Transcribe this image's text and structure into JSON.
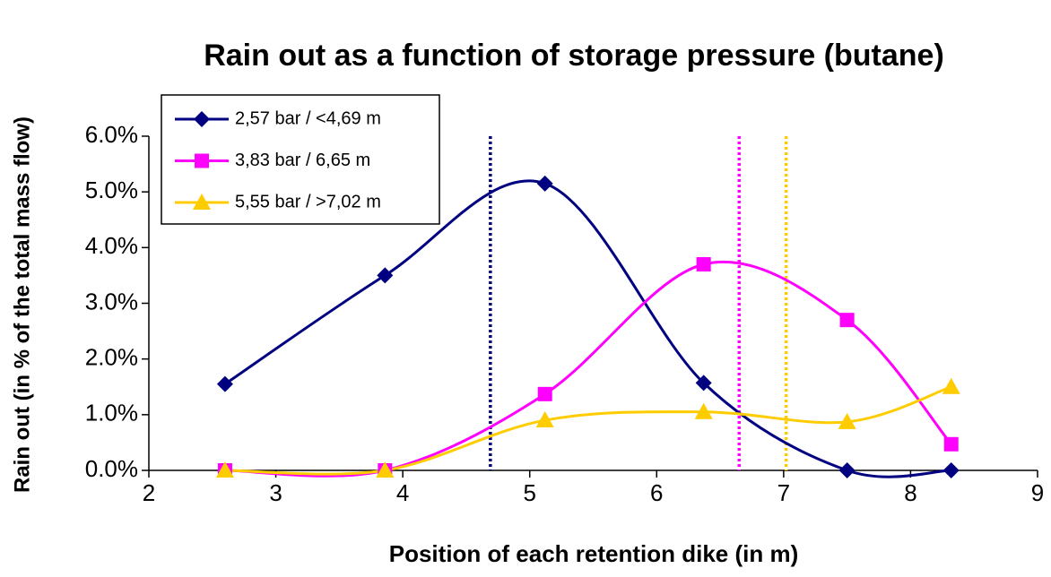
{
  "chart_data": {
    "type": "line",
    "title": "Rain out as a function of storage pressure (butane)",
    "x_label": "Position of each retention dike (in m)",
    "y_label": "Rain out (in % of the total mass flow)",
    "x": [
      2.6,
      3.86,
      5.12,
      6.37,
      7.5,
      8.32
    ],
    "series": [
      {
        "name": "2,57 bar / <4,69 m",
        "color": "#000080",
        "marker": "diamond",
        "threshold": 4.69,
        "values": [
          1.55,
          3.5,
          5.15,
          1.57,
          0,
          0
        ]
      },
      {
        "name": "3,83 bar / 6,65 m",
        "color": "#ff00ff",
        "marker": "square",
        "threshold": 6.65,
        "values": [
          0,
          0,
          1.37,
          3.7,
          2.7,
          0.47
        ]
      },
      {
        "name": "5,55 bar / >7,02 m",
        "color": "#ffcc00",
        "marker": "triangle",
        "threshold": 7.02,
        "values": [
          0,
          0,
          0.9,
          1.05,
          0.87,
          1.5
        ]
      }
    ],
    "xlim": [
      2,
      9
    ],
    "xticks": [
      2,
      3,
      4,
      5,
      6,
      7,
      8,
      9
    ],
    "ylim": [
      0,
      6
    ],
    "yticks": [
      {
        "value": 0,
        "label": "0.0%"
      },
      {
        "value": 1,
        "label": "1.0%"
      },
      {
        "value": 2,
        "label": "2.0%"
      },
      {
        "value": 3,
        "label": "3.0%"
      },
      {
        "value": 4,
        "label": "4.0%"
      },
      {
        "value": 5,
        "label": "5.0%"
      },
      {
        "value": 6,
        "label": "6.0%"
      }
    ],
    "smooth": true,
    "legend": "top-left"
  }
}
